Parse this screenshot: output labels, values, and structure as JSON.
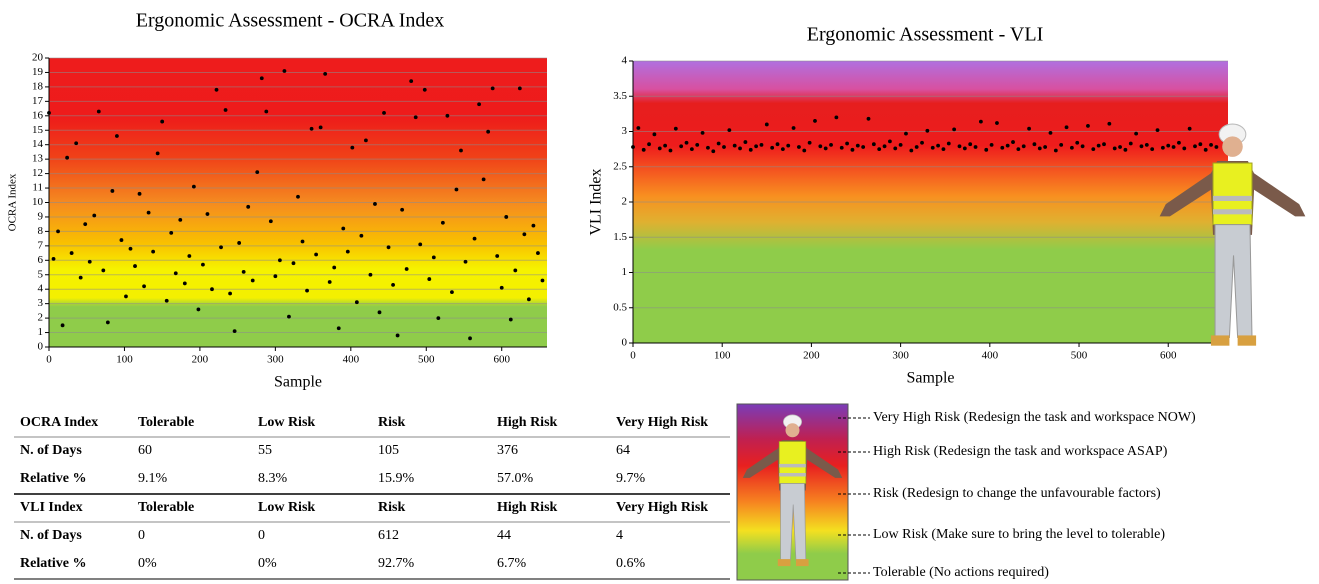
{
  "chart_data": [
    {
      "type": "scatter",
      "title": "Ergonomic Assessment - OCRA Index",
      "xlabel": "Sample",
      "ylabel": "OCRA Index",
      "color": "#000000",
      "grid": true,
      "xlim": [
        0,
        660
      ],
      "ylim": [
        0,
        20
      ],
      "xticks": [
        0,
        100,
        200,
        300,
        400,
        500,
        600
      ],
      "yticks": [
        0,
        1,
        2,
        3,
        4,
        5,
        6,
        7,
        8,
        9,
        10,
        11,
        12,
        13,
        14,
        15,
        16,
        17,
        18,
        19,
        20
      ],
      "x": [
        0,
        6,
        12,
        18,
        24,
        30,
        36,
        42,
        48,
        54,
        60,
        66,
        72,
        78,
        84,
        90,
        96,
        102,
        108,
        114,
        120,
        126,
        132,
        138,
        144,
        150,
        156,
        162,
        168,
        174,
        180,
        186,
        192,
        198,
        204,
        210,
        216,
        222,
        228,
        234,
        240,
        246,
        252,
        258,
        264,
        270,
        276,
        282,
        288,
        294,
        300,
        306,
        312,
        318,
        324,
        330,
        336,
        342,
        348,
        354,
        360,
        366,
        372,
        378,
        384,
        390,
        396,
        402,
        408,
        414,
        420,
        426,
        432,
        438,
        444,
        450,
        456,
        462,
        468,
        474,
        480,
        486,
        492,
        498,
        504,
        510,
        516,
        522,
        528,
        534,
        540,
        546,
        552,
        558,
        564,
        570,
        576,
        582,
        588,
        594,
        600,
        606,
        612,
        618,
        624,
        630,
        636,
        642,
        648,
        654
      ],
      "values": [
        16.2,
        6.1,
        8.0,
        1.5,
        13.1,
        6.5,
        14.1,
        4.8,
        8.5,
        5.9,
        9.1,
        16.3,
        5.3,
        1.7,
        10.8,
        14.6,
        7.4,
        3.5,
        6.8,
        5.6,
        10.6,
        4.2,
        9.3,
        6.6,
        13.4,
        15.6,
        3.2,
        7.9,
        5.1,
        8.8,
        4.4,
        6.3,
        11.1,
        2.6,
        5.7,
        9.2,
        4.0,
        17.8,
        6.9,
        16.4,
        3.7,
        1.1,
        7.2,
        5.2,
        9.7,
        4.6,
        12.1,
        18.6,
        16.3,
        8.7,
        4.9,
        6.0,
        19.1,
        2.1,
        5.8,
        10.4,
        7.3,
        3.9,
        15.1,
        6.4,
        15.2,
        18.9,
        4.5,
        5.5,
        1.3,
        8.2,
        6.6,
        13.8,
        3.1,
        7.7,
        14.3,
        5.0,
        9.9,
        2.4,
        16.2,
        6.9,
        4.3,
        0.8,
        9.5,
        5.4,
        18.4,
        15.9,
        7.1,
        17.8,
        4.7,
        6.2,
        2.0,
        8.6,
        16.0,
        3.8,
        10.9,
        13.6,
        5.9,
        0.6,
        7.5,
        16.8,
        11.6,
        14.9,
        17.9,
        6.3,
        4.1,
        9.0,
        1.9,
        5.3,
        17.9,
        7.8,
        3.3,
        8.4,
        6.5,
        4.6
      ]
    },
    {
      "type": "scatter",
      "title": "Ergonomic Assessment - VLI",
      "xlabel": "Sample",
      "ylabel": "VLI Index",
      "color": "#000000",
      "grid": true,
      "xlim": [
        0,
        667
      ],
      "ylim": [
        0,
        4
      ],
      "xticks": [
        0,
        100,
        200,
        300,
        400,
        500,
        600
      ],
      "yticks": [
        0,
        0.5,
        1,
        1.5,
        2,
        2.5,
        3,
        3.5,
        4
      ],
      "x": [
        0,
        6,
        12,
        18,
        24,
        30,
        36,
        42,
        48,
        54,
        60,
        66,
        72,
        78,
        84,
        90,
        96,
        102,
        108,
        114,
        120,
        126,
        132,
        138,
        144,
        150,
        156,
        162,
        168,
        174,
        180,
        186,
        192,
        198,
        204,
        210,
        216,
        222,
        228,
        234,
        240,
        246,
        252,
        258,
        264,
        270,
        276,
        282,
        288,
        294,
        300,
        306,
        312,
        318,
        324,
        330,
        336,
        342,
        348,
        354,
        360,
        366,
        372,
        378,
        384,
        390,
        396,
        402,
        408,
        414,
        420,
        426,
        432,
        438,
        444,
        450,
        456,
        462,
        468,
        474,
        480,
        486,
        492,
        498,
        504,
        510,
        516,
        522,
        528,
        534,
        540,
        546,
        552,
        558,
        564,
        570,
        576,
        582,
        588,
        594,
        600,
        606,
        612,
        618,
        624,
        630,
        636,
        642,
        648,
        654
      ],
      "values": [
        2.78,
        3.05,
        2.74,
        2.82,
        2.96,
        2.76,
        2.8,
        2.73,
        3.04,
        2.79,
        2.84,
        2.75,
        2.81,
        2.98,
        2.77,
        2.72,
        2.83,
        2.78,
        3.02,
        2.8,
        2.76,
        2.85,
        2.74,
        2.79,
        2.81,
        3.1,
        2.77,
        2.82,
        2.75,
        2.8,
        3.05,
        2.78,
        2.73,
        2.84,
        3.15,
        2.79,
        2.76,
        2.81,
        3.2,
        2.77,
        2.83,
        2.74,
        2.8,
        2.78,
        3.18,
        2.82,
        2.75,
        2.79,
        2.86,
        2.76,
        2.81,
        2.97,
        2.73,
        2.78,
        2.84,
        3.01,
        2.77,
        2.8,
        2.75,
        2.83,
        3.03,
        2.79,
        2.76,
        2.82,
        2.78,
        3.14,
        2.74,
        2.81,
        3.12,
        2.77,
        2.8,
        2.85,
        2.75,
        2.79,
        3.04,
        2.82,
        2.76,
        2.78,
        2.98,
        2.73,
        2.81,
        3.06,
        2.77,
        2.84,
        2.79,
        3.08,
        2.75,
        2.8,
        2.82,
        3.11,
        2.76,
        2.78,
        2.74,
        2.83,
        2.97,
        2.79,
        2.81,
        2.75,
        3.02,
        2.77,
        2.8,
        2.78,
        2.84,
        2.76,
        3.04,
        2.79,
        2.82,
        2.74,
        2.81,
        2.78
      ]
    }
  ],
  "table": {
    "sections": [
      {
        "header": [
          "OCRA Index",
          "Tolerable",
          "Low Risk",
          "Risk",
          "High Risk",
          "Very High Risk"
        ],
        "rows": [
          [
            "N. of Days",
            "60",
            "55",
            "105",
            "376",
            "64"
          ],
          [
            "Relative %",
            "9.1%",
            "8.3%",
            "15.9%",
            "57.0%",
            "9.7%"
          ]
        ]
      },
      {
        "header": [
          "VLI Index",
          "Tolerable",
          "Low Risk",
          "Risk",
          "High Risk",
          "Very High Risk"
        ],
        "rows": [
          [
            "N. of Days",
            "0",
            "0",
            "612",
            "44",
            "4"
          ],
          [
            "Relative %",
            "0%",
            "0%",
            "92.7%",
            "6.7%",
            "0.6%"
          ]
        ]
      }
    ]
  },
  "legend": {
    "items": [
      "Very High Risk (Redesign the task and workspace NOW)",
      "High Risk (Redesign the task and workspace ASAP)",
      "Risk (Redesign to change the unfavourable factors)",
      "Low Risk (Make sure to bring the level to tolerable)",
      "Tolerable  (No actions required)"
    ]
  }
}
